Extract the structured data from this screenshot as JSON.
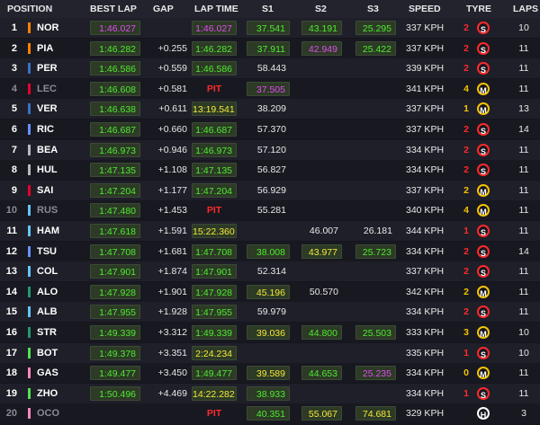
{
  "header": {
    "position": "POSITION",
    "best_lap": "BEST LAP",
    "gap": "GAP",
    "lap_time": "LAP TIME",
    "s1": "S1",
    "s2": "S2",
    "s3": "S3",
    "speed": "SPEED",
    "tyre": "TYRE",
    "laps": "LAPS"
  },
  "colors": {
    "green": "#4fea30",
    "purple": "#e14cf2",
    "yellow": "#f5e93a",
    "white": "#e8e8e8",
    "red": "#ff2a2a",
    "soft": "#ff2a2a",
    "medium": "#f5c400",
    "hard": "#ffffff"
  },
  "rows": [
    {
      "pos": "1",
      "team": "#ff8000",
      "driver": "NOR",
      "best": "1:46.027",
      "best_c": "p",
      "gap": "",
      "lap": "1:46.027",
      "lap_c": "p",
      "s1": "37.541",
      "s1_c": "g",
      "s2": "43.191",
      "s2_c": "g",
      "s3": "25.295",
      "s3_c": "g",
      "speed": "337 KPH",
      "tyre_age": "2",
      "tyre": "S",
      "laps": "10"
    },
    {
      "pos": "2",
      "team": "#ff8000",
      "driver": "PIA",
      "best": "1:46.282",
      "best_c": "g",
      "gap": "+0.255",
      "lap": "1:46.282",
      "lap_c": "g",
      "s1": "37.911",
      "s1_c": "g",
      "s2": "42.949",
      "s2_c": "p",
      "s3": "25.422",
      "s3_c": "g",
      "speed": "337 KPH",
      "tyre_age": "2",
      "tyre": "S",
      "laps": "11"
    },
    {
      "pos": "3",
      "team": "#3671c6",
      "driver": "PER",
      "best": "1:46.586",
      "best_c": "g",
      "gap": "+0.559",
      "lap": "1:46.586",
      "lap_c": "g",
      "s1": "58.443",
      "s1_c": "w",
      "s2": "",
      "s2_c": "w",
      "s3": "",
      "s3_c": "w",
      "speed": "339 KPH",
      "tyre_age": "2",
      "tyre": "S",
      "laps": "11"
    },
    {
      "pos": "4",
      "team": "#e8002d",
      "driver": "LEC",
      "grey": true,
      "best": "1:46.608",
      "best_c": "g",
      "gap": "+0.581",
      "lap": "PIT",
      "lap_c": "r",
      "s1": "37.505",
      "s1_c": "p",
      "s2": "",
      "s2_c": "w",
      "s3": "",
      "s3_c": "w",
      "speed": "341 KPH",
      "tyre_age": "4",
      "tyre": "M",
      "laps": "11"
    },
    {
      "pos": "5",
      "team": "#3671c6",
      "driver": "VER",
      "best": "1:46.638",
      "best_c": "g",
      "gap": "+0.611",
      "lap": "13:19.541",
      "lap_c": "y",
      "s1": "38.209",
      "s1_c": "w",
      "s2": "",
      "s2_c": "w",
      "s3": "",
      "s3_c": "w",
      "speed": "337 KPH",
      "tyre_age": "1",
      "tyre": "M",
      "laps": "13"
    },
    {
      "pos": "6",
      "team": "#6692ff",
      "driver": "RIC",
      "best": "1:46.687",
      "best_c": "g",
      "gap": "+0.660",
      "lap": "1:46.687",
      "lap_c": "g",
      "s1": "57.370",
      "s1_c": "w",
      "s2": "",
      "s2_c": "w",
      "s3": "",
      "s3_c": "w",
      "speed": "337 KPH",
      "tyre_age": "2",
      "tyre": "S",
      "laps": "14"
    },
    {
      "pos": "7",
      "team": "#b6babd",
      "driver": "BEA",
      "best": "1:46.973",
      "best_c": "g",
      "gap": "+0.946",
      "lap": "1:46.973",
      "lap_c": "g",
      "s1": "57.120",
      "s1_c": "w",
      "s2": "",
      "s2_c": "w",
      "s3": "",
      "s3_c": "w",
      "speed": "334 KPH",
      "tyre_age": "2",
      "tyre": "S",
      "laps": "11"
    },
    {
      "pos": "8",
      "team": "#b6babd",
      "driver": "HUL",
      "best": "1:47.135",
      "best_c": "g",
      "gap": "+1.108",
      "lap": "1:47.135",
      "lap_c": "g",
      "s1": "56.827",
      "s1_c": "w",
      "s2": "",
      "s2_c": "w",
      "s3": "",
      "s3_c": "w",
      "speed": "334 KPH",
      "tyre_age": "2",
      "tyre": "S",
      "laps": "11"
    },
    {
      "pos": "9",
      "team": "#e8002d",
      "driver": "SAI",
      "best": "1:47.204",
      "best_c": "g",
      "gap": "+1.177",
      "lap": "1:47.204",
      "lap_c": "g",
      "s1": "56.929",
      "s1_c": "w",
      "s2": "",
      "s2_c": "w",
      "s3": "",
      "s3_c": "w",
      "speed": "337 KPH",
      "tyre_age": "2",
      "tyre": "M",
      "laps": "11"
    },
    {
      "pos": "10",
      "team": "#64c4ff",
      "driver": "RUS",
      "grey": true,
      "best": "1:47.480",
      "best_c": "g",
      "gap": "+1.453",
      "lap": "PIT",
      "lap_c": "r",
      "s1": "55.281",
      "s1_c": "w",
      "s2": "",
      "s2_c": "w",
      "s3": "",
      "s3_c": "w",
      "speed": "340 KPH",
      "tyre_age": "4",
      "tyre": "M",
      "laps": "11"
    },
    {
      "pos": "11",
      "team": "#64c4ff",
      "driver": "HAM",
      "best": "1:47.618",
      "best_c": "g",
      "gap": "+1.591",
      "lap": "15:22.360",
      "lap_c": "y",
      "s1": "",
      "s1_c": "w",
      "s2": "46.007",
      "s2_c": "w",
      "s3": "26.181",
      "s3_c": "w",
      "speed": "344 KPH",
      "tyre_age": "1",
      "tyre": "S",
      "laps": "11"
    },
    {
      "pos": "12",
      "team": "#6692ff",
      "driver": "TSU",
      "best": "1:47.708",
      "best_c": "g",
      "gap": "+1.681",
      "lap": "1:47.708",
      "lap_c": "g",
      "s1": "38.008",
      "s1_c": "g",
      "s2": "43.977",
      "s2_c": "y",
      "s3": "25.723",
      "s3_c": "g",
      "speed": "334 KPH",
      "tyre_age": "2",
      "tyre": "S",
      "laps": "14"
    },
    {
      "pos": "13",
      "team": "#64c4ff",
      "driver": "COL",
      "best": "1:47.901",
      "best_c": "g",
      "gap": "+1.874",
      "lap": "1:47.901",
      "lap_c": "g",
      "s1": "52.314",
      "s1_c": "w",
      "s2": "",
      "s2_c": "w",
      "s3": "",
      "s3_c": "w",
      "speed": "337 KPH",
      "tyre_age": "2",
      "tyre": "S",
      "laps": "11"
    },
    {
      "pos": "14",
      "team": "#229971",
      "driver": "ALO",
      "best": "1:47.928",
      "best_c": "g",
      "gap": "+1.901",
      "lap": "1:47.928",
      "lap_c": "g",
      "s1": "45.196",
      "s1_c": "y",
      "s2": "50.570",
      "s2_c": "w",
      "s3": "",
      "s3_c": "w",
      "speed": "342 KPH",
      "tyre_age": "2",
      "tyre": "M",
      "laps": "11"
    },
    {
      "pos": "15",
      "team": "#64c4ff",
      "driver": "ALB",
      "best": "1:47.955",
      "best_c": "g",
      "gap": "+1.928",
      "lap": "1:47.955",
      "lap_c": "g",
      "s1": "59.979",
      "s1_c": "w",
      "s2": "",
      "s2_c": "w",
      "s3": "",
      "s3_c": "w",
      "speed": "334 KPH",
      "tyre_age": "2",
      "tyre": "S",
      "laps": "11"
    },
    {
      "pos": "16",
      "team": "#229971",
      "driver": "STR",
      "best": "1:49.339",
      "best_c": "g",
      "gap": "+3.312",
      "lap": "1:49.339",
      "lap_c": "g",
      "s1": "39.036",
      "s1_c": "y",
      "s2": "44.800",
      "s2_c": "g",
      "s3": "25.503",
      "s3_c": "g",
      "speed": "333 KPH",
      "tyre_age": "3",
      "tyre": "M",
      "laps": "10"
    },
    {
      "pos": "17",
      "team": "#52e252",
      "driver": "BOT",
      "best": "1:49.378",
      "best_c": "g",
      "gap": "+3.351",
      "lap": "2:24.234",
      "lap_c": "y",
      "s1": "",
      "s1_c": "w",
      "s2": "",
      "s2_c": "w",
      "s3": "",
      "s3_c": "w",
      "speed": "335 KPH",
      "tyre_age": "1",
      "tyre": "S",
      "laps": "10"
    },
    {
      "pos": "18",
      "team": "#ff87bc",
      "driver": "GAS",
      "best": "1:49.477",
      "best_c": "g",
      "gap": "+3.450",
      "lap": "1:49.477",
      "lap_c": "g",
      "s1": "39.589",
      "s1_c": "y",
      "s2": "44.653",
      "s2_c": "g",
      "s3": "25.235",
      "s3_c": "p",
      "speed": "334 KPH",
      "tyre_age": "0",
      "tyre": "M",
      "laps": "11"
    },
    {
      "pos": "19",
      "team": "#52e252",
      "driver": "ZHO",
      "best": "1:50.496",
      "best_c": "g",
      "gap": "+4.469",
      "lap": "14:22.282",
      "lap_c": "y",
      "s1": "38.933",
      "s1_c": "g",
      "s2": "",
      "s2_c": "w",
      "s3": "",
      "s3_c": "w",
      "speed": "334 KPH",
      "tyre_age": "1",
      "tyre": "S",
      "laps": "11"
    },
    {
      "pos": "20",
      "team": "#ff87bc",
      "driver": "OCO",
      "grey": true,
      "best": "",
      "best_c": "g",
      "gap": "",
      "lap": "PIT",
      "lap_c": "r",
      "s1": "40.351",
      "s1_c": "g",
      "s2": "55.067",
      "s2_c": "y",
      "s3": "74.681",
      "s3_c": "y",
      "speed": "329 KPH",
      "tyre_age": "",
      "tyre": "H",
      "laps": "3"
    }
  ]
}
